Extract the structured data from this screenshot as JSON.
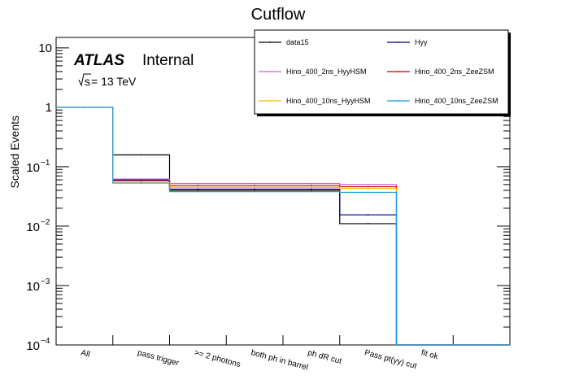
{
  "chart_data": {
    "type": "step-histogram",
    "title": "Cutflow",
    "xlabel": "",
    "ylabel": "Scaled Events",
    "yscale": "log",
    "ylim": [
      0.0001,
      15
    ],
    "categories": [
      "All",
      "pass trigger",
      ">= 2 photons",
      "both ph in barrel",
      "ph dR cut",
      "Pass pt(yy) cut",
      "fit ok"
    ],
    "yticks": [
      {
        "value": 0.0001,
        "base": "10",
        "exp": "−4",
        "plain": ""
      },
      {
        "value": 0.001,
        "base": "10",
        "exp": "−3",
        "plain": ""
      },
      {
        "value": 0.01,
        "base": "10",
        "exp": "−2",
        "plain": ""
      },
      {
        "value": 0.1,
        "base": "10",
        "exp": "−1",
        "plain": ""
      },
      {
        "value": 1,
        "base": "",
        "exp": "",
        "plain": "1"
      },
      {
        "value": 10,
        "base": "",
        "exp": "",
        "plain": "10"
      }
    ],
    "series": [
      {
        "name": "data15",
        "color": "#000000",
        "values": [
          1.0,
          0.158,
          0.04,
          0.04,
          0.04,
          0.011,
          0.0001
        ]
      },
      {
        "name": "Hyy",
        "color": "#000080",
        "values": [
          1.0,
          0.06,
          0.042,
          0.042,
          0.042,
          0.0155,
          0.0001
        ]
      },
      {
        "name": "Hino_400_2ns_HyyHSM",
        "color": "#cc66cc",
        "values": [
          1.0,
          0.062,
          0.052,
          0.052,
          0.052,
          0.05,
          0.0001
        ]
      },
      {
        "name": "Hino_400_2ns_ZeeZSM",
        "color": "#cc0000",
        "values": [
          1.0,
          0.058,
          0.048,
          0.048,
          0.048,
          0.046,
          0.0001
        ]
      },
      {
        "name": "Hino_400_10ns_HyyHSM",
        "color": "#f0c000",
        "values": [
          1.0,
          0.054,
          0.045,
          0.045,
          0.045,
          0.043,
          0.0001
        ]
      },
      {
        "name": "Hino_400_10ns_ZeeZSM",
        "color": "#1f9fe0",
        "values": [
          1.0,
          0.053,
          0.038,
          0.038,
          0.038,
          0.037,
          0.0001
        ]
      }
    ],
    "annotations": {
      "atlas": "ATLAS",
      "internal": "Internal",
      "energy_prefix": "s",
      "energy_suffix": " = 13 TeV"
    }
  }
}
